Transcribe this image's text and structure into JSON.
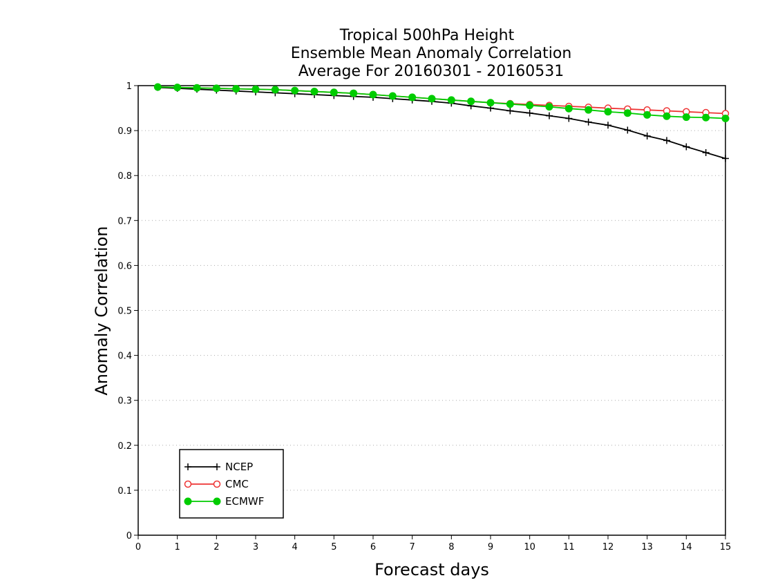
{
  "chart_data": {
    "type": "line",
    "title_lines": [
      "Tropical 500hPa Height",
      "Ensemble Mean Anomaly Correlation",
      "Average For 20160301 - 20160531"
    ],
    "xlabel": "Forecast days",
    "ylabel": "Anomaly Correlation",
    "xlim": [
      0,
      15
    ],
    "ylim": [
      0,
      1
    ],
    "x_ticks": [
      0,
      1,
      2,
      3,
      4,
      5,
      6,
      7,
      8,
      9,
      10,
      11,
      12,
      13,
      14,
      15
    ],
    "x_tick_labels": [
      "0",
      "1",
      "2",
      "3",
      "4",
      "5",
      "6",
      "7",
      "8",
      "9",
      "10",
      "11",
      "12",
      "13",
      "14",
      "15"
    ],
    "y_ticks": [
      0,
      0.1,
      0.2,
      0.3,
      0.4,
      0.5,
      0.6,
      0.7,
      0.8,
      0.9,
      1
    ],
    "y_tick_labels": [
      "0",
      "0.1",
      "0.2",
      "0.3",
      "0.4",
      "0.5",
      "0.6",
      "0.7",
      "0.8",
      "0.9",
      "1"
    ],
    "grid": "horizontal-dotted",
    "legend_position": "bottom-left",
    "x": [
      0.5,
      1,
      1.5,
      2,
      2.5,
      3,
      3.5,
      4,
      4.5,
      5,
      5.5,
      6,
      6.5,
      7,
      7.5,
      8,
      8.5,
      9,
      9.5,
      10,
      10.5,
      11,
      11.5,
      12,
      12.5,
      13,
      13.5,
      14,
      14.5,
      15
    ],
    "series": [
      {
        "name": "NCEP",
        "color": "#000000",
        "marker": "plus",
        "values": [
          0.996,
          0.994,
          0.992,
          0.99,
          0.988,
          0.986,
          0.984,
          0.982,
          0.98,
          0.978,
          0.976,
          0.974,
          0.971,
          0.968,
          0.965,
          0.961,
          0.955,
          0.95,
          0.944,
          0.939,
          0.933,
          0.927,
          0.919,
          0.912,
          0.901,
          0.888,
          0.878,
          0.864,
          0.851,
          0.838
        ]
      },
      {
        "name": "CMC",
        "color": "#ee3333",
        "marker": "open-circle",
        "values": [
          0.997,
          0.996,
          0.995,
          0.994,
          0.993,
          0.992,
          0.991,
          0.989,
          0.987,
          0.985,
          0.983,
          0.98,
          0.977,
          0.974,
          0.971,
          0.968,
          0.965,
          0.962,
          0.96,
          0.958,
          0.956,
          0.954,
          0.952,
          0.95,
          0.948,
          0.946,
          0.944,
          0.942,
          0.94,
          0.938
        ]
      },
      {
        "name": "ECMWF",
        "color": "#00cc00",
        "marker": "filled-circle",
        "values": [
          0.997,
          0.996,
          0.995,
          0.994,
          0.993,
          0.992,
          0.991,
          0.989,
          0.987,
          0.985,
          0.983,
          0.98,
          0.977,
          0.974,
          0.971,
          0.968,
          0.965,
          0.962,
          0.959,
          0.956,
          0.953,
          0.949,
          0.946,
          0.942,
          0.939,
          0.935,
          0.932,
          0.93,
          0.929,
          0.927
        ]
      }
    ]
  }
}
